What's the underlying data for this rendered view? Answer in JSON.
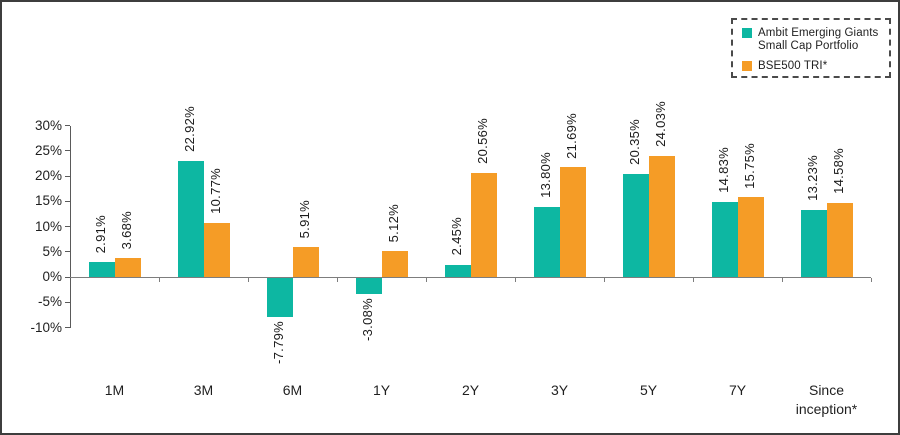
{
  "chart_data": {
    "type": "bar",
    "title": "",
    "categories": [
      "1M",
      "3M",
      "6M",
      "1Y",
      "2Y",
      "3Y",
      "5Y",
      "7Y",
      "Since inception*"
    ],
    "series": [
      {
        "name": "Ambit Emerging Giants Small Cap Portfolio",
        "color": "#0db7a2",
        "values": [
          2.91,
          22.92,
          -7.79,
          -3.08,
          2.45,
          13.8,
          20.35,
          14.83,
          13.23
        ],
        "value_labels": [
          "2.91%",
          "22.92%",
          "-7.79%",
          "-3.08%",
          "2.45%",
          "13.80%",
          "20.35%",
          "14.83%",
          "13.23%"
        ]
      },
      {
        "name": "BSE500 TRI*",
        "color": "#f59c26",
        "values": [
          3.68,
          10.77,
          5.91,
          5.12,
          20.56,
          21.69,
          24.03,
          15.75,
          14.58
        ],
        "value_labels": [
          "3.68%",
          "10.77%",
          "5.91%",
          "5.12%",
          "20.56%",
          "21.69%",
          "24.03%",
          "15.75%",
          "14.58%"
        ]
      }
    ],
    "xlabel": "",
    "ylabel": "",
    "y_ticks": [
      {
        "label": "30%",
        "value": 30
      },
      {
        "label": "25%",
        "value": 25
      },
      {
        "label": "20%",
        "value": 20
      },
      {
        "label": "15%",
        "value": 15
      },
      {
        "label": "10%",
        "value": 10
      },
      {
        "label": "5%",
        "value": 5
      },
      {
        "label": "0%",
        "value": 0
      },
      {
        "label": "-5%",
        "value": -5
      },
      {
        "label": "-10%",
        "value": -10
      }
    ],
    "ylim": [
      -10,
      30
    ],
    "grid": false,
    "legend_position": "top-right",
    "colors": {
      "portfolio": "#0db7a2",
      "benchmark": "#f59c26",
      "axis": "#5a5a5a",
      "zero_line": "#7d7d7d",
      "text": "#1f1f1f",
      "frame_border": "#3d3d3d"
    }
  }
}
